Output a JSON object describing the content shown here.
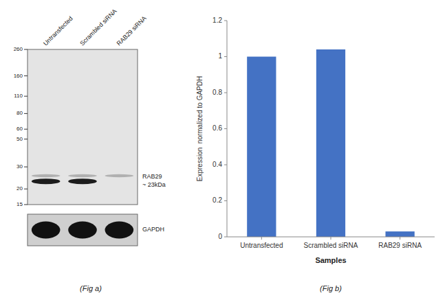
{
  "chart_data": [
    {
      "type": "western_blot",
      "title": "(Fig a)",
      "categories": [
        "Untransfected",
        "Scrambled siRNA",
        "RAB29 siRNA"
      ],
      "series": [
        {
          "values": [
            25.5,
            25.5,
            25.5
          ]
        },
        {
          "values": [
            23,
            23,
            null
          ]
        }
      ],
      "log": "y",
      "ylim": [
        15,
        260
      ],
      "yticks": [
        260,
        160,
        110,
        80,
        60,
        50,
        30,
        20,
        15
      ],
      "annotations": [
        "RAB29\n~ 23kDa",
        "GAPDH"
      ],
      "tick_labels": "y"
    },
    {
      "type": "bar",
      "title": "(Fig b)",
      "categories": [
        "Untransfected",
        "Scrambled siRNA",
        "RAB29 siRNA"
      ],
      "values": [
        1.0,
        1.04,
        0.03
      ],
      "color": "#4472c4",
      "ylabel": "Expression  normalized to GAPDH",
      "xlabel": "Samples",
      "ylim": [
        0,
        1.2
      ],
      "yticks": [
        0,
        0.2,
        0.4,
        0.6,
        0.8,
        1,
        1.2
      ],
      "grid": false
    }
  ]
}
